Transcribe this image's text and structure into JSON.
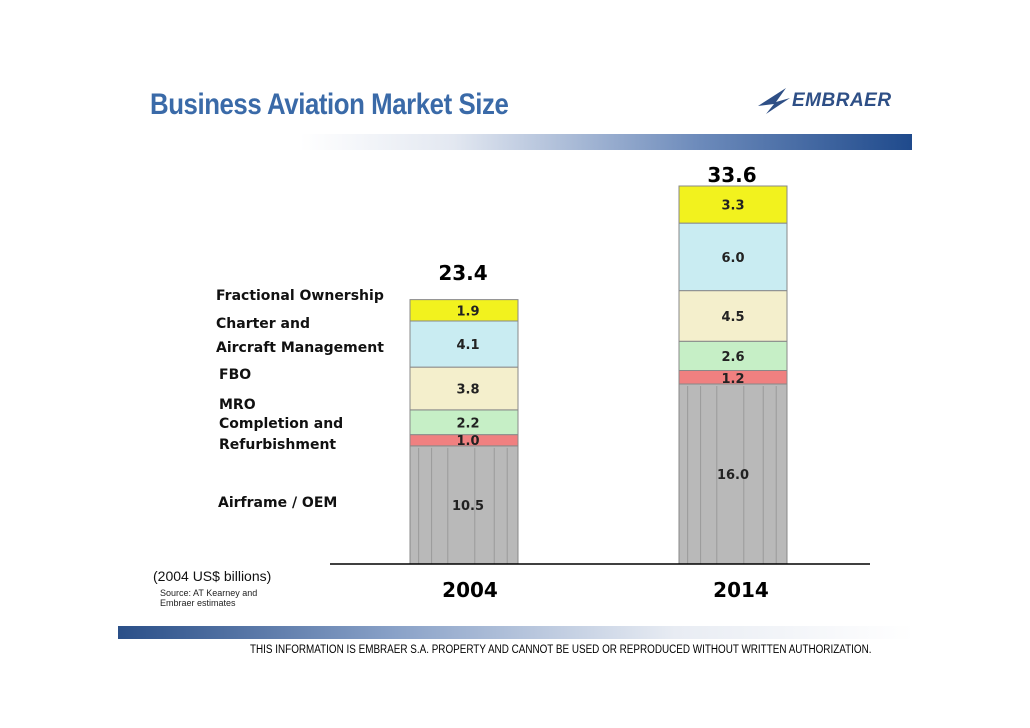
{
  "header": {
    "title": "Business Aviation Market Size",
    "logo_text": "EMBRAER"
  },
  "chart_data": {
    "type": "bar",
    "stacked": true,
    "title": "Business Aviation Market Size",
    "units": "(2004 US$ billions)",
    "categories": [
      "2004",
      "2014"
    ],
    "totals": [
      23.4,
      33.6
    ],
    "series": [
      {
        "name": "Airframe / OEM",
        "values": [
          10.5,
          16.0
        ],
        "color": "#b9b9b9",
        "labels": [
          "10.5",
          "16.0"
        ]
      },
      {
        "name": "Completion and Refurbishment",
        "values": [
          1.0,
          1.2
        ],
        "color": "#f08080",
        "labels": [
          "1.0",
          "1.2"
        ]
      },
      {
        "name": "MRO",
        "values": [
          2.2,
          2.6
        ],
        "color": "#c6efc6",
        "labels": [
          "2.2",
          "2.6"
        ]
      },
      {
        "name": "FBO",
        "values": [
          3.8,
          4.5
        ],
        "color": "#f4efcc",
        "labels": [
          "3.8",
          "4.5"
        ]
      },
      {
        "name": "Charter and Aircraft Management",
        "values": [
          4.1,
          6.0
        ],
        "color": "#c9ecf2",
        "labels": [
          "4.1",
          "6.0"
        ]
      },
      {
        "name": "Fractional Ownership",
        "values": [
          1.9,
          3.3
        ],
        "color": "#f2f21e",
        "labels": [
          "1.9",
          "3.3"
        ]
      }
    ]
  },
  "legend": {
    "fractional": "Fractional Ownership",
    "charter_1": "Charter and",
    "charter_2": "Aircraft Management",
    "fbo": "FBO",
    "mro": "MRO",
    "completion_1": "Completion and",
    "completion_2": "Refurbishment",
    "airframe": "Airframe / OEM"
  },
  "notes": {
    "units": "(2004 US$ billions)",
    "source_1": "Source: AT Kearney and",
    "source_2": "Embraer estimates"
  },
  "footer": {
    "disclaimer": "THIS INFORMATION IS EMBRAER S.A. PROPERTY AND CANNOT BE USED OR REPRODUCED WITHOUT WRITTEN AUTHORIZATION."
  }
}
